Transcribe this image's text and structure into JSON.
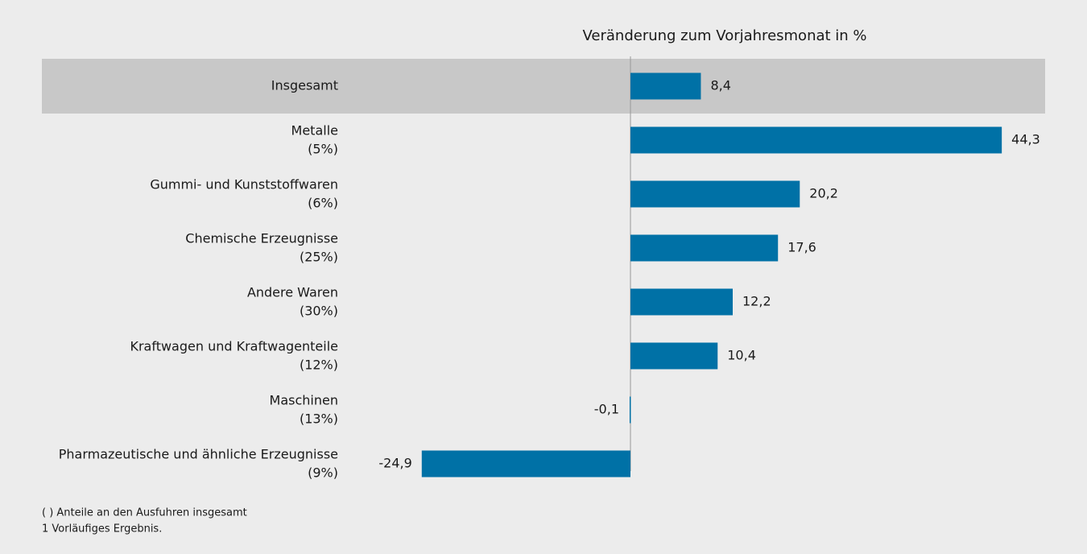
{
  "chart_data": {
    "type": "hbar",
    "title": "Veränderung zum Vorjahresmonat in %",
    "categories": [
      "Insgesamt",
      "Metalle",
      "Gummi- und Kunststoffwaren",
      "Chemische Erzeugnisse",
      "Andere Waren",
      "Kraftwagen und Kraftwagenteile",
      "Maschinen",
      "Pharmazeutische und ähnliche Erzeugnisse"
    ],
    "shares": [
      null,
      "(5%)",
      "(6%)",
      "(25%)",
      "(30%)",
      "(12%)",
      "(13%)",
      "(9%)"
    ],
    "values": [
      8.4,
      44.3,
      20.2,
      17.6,
      12.2,
      10.4,
      -0.1,
      -24.9
    ],
    "value_labels": [
      "8,4",
      "44,3",
      "20,2",
      "17,6",
      "12,2",
      "10,4",
      "-0,1",
      "-24,9"
    ],
    "color": "#0071a6",
    "xlim": [
      -30,
      50
    ],
    "notes": [
      "( ) Anteile an den Ausfuhren insgesamt",
      "1 Vorläufiges Ergebnis."
    ]
  }
}
